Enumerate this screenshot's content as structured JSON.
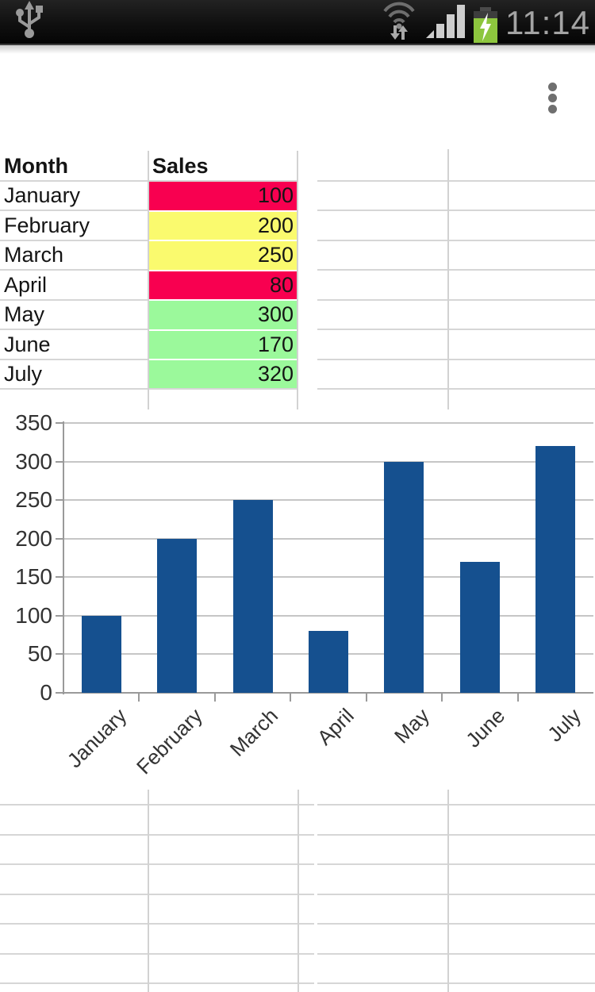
{
  "status_bar": {
    "time": "11:14",
    "icons": [
      "usb-icon",
      "wifi-transfer-icon",
      "signal-strength-icon",
      "battery-charging-icon"
    ],
    "battery_color": "#8dc63e"
  },
  "menu": {
    "overflow_icon": "three-dot-vertical-menu"
  },
  "table": {
    "headers": [
      "Month",
      "Sales"
    ],
    "rows": [
      {
        "month": "January",
        "sales": "100",
        "fill": "#f80050"
      },
      {
        "month": "February",
        "sales": "200",
        "fill": "#fafa6e"
      },
      {
        "month": "March",
        "sales": "250",
        "fill": "#fafa6e"
      },
      {
        "month": "April",
        "sales": "80",
        "fill": "#f80050"
      },
      {
        "month": "May",
        "sales": "300",
        "fill": "#9bf99b"
      },
      {
        "month": "June",
        "sales": "170",
        "fill": "#9bf99b"
      },
      {
        "month": "July",
        "sales": "320",
        "fill": "#9bf99b"
      }
    ],
    "cell_colors": {
      "low": "#f80050",
      "mid": "#fafa6e",
      "high": "#9bf99b"
    }
  },
  "chart_data": {
    "type": "bar",
    "categories": [
      "January",
      "February",
      "March",
      "April",
      "May",
      "June",
      "July"
    ],
    "values": [
      100,
      200,
      250,
      80,
      300,
      170,
      320
    ],
    "title": "",
    "xlabel": "",
    "ylabel": "",
    "ylim": [
      0,
      350
    ],
    "yticks": [
      0,
      50,
      100,
      150,
      200,
      250,
      300,
      350
    ],
    "grid": true,
    "legend": false,
    "bar_color": "#15508f",
    "x_label_rotation_deg": 45
  }
}
